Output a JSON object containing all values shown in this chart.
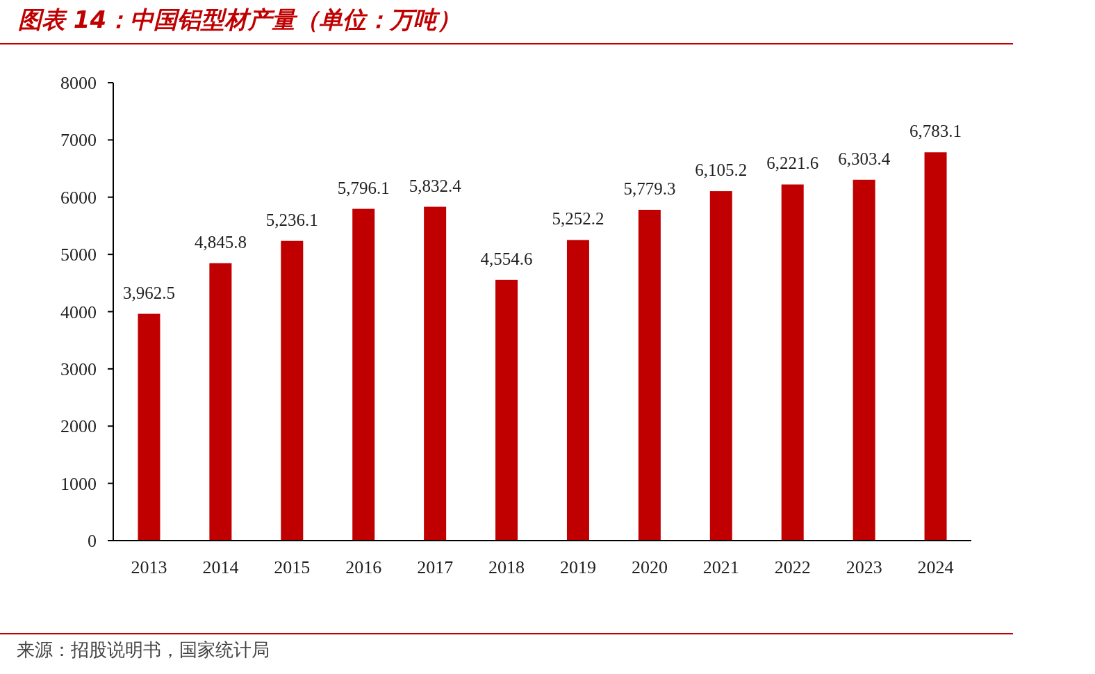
{
  "chart_data": {
    "type": "bar",
    "title": "图表 14：中国铝型材产量（单位：万吨）",
    "categories": [
      "2013",
      "2014",
      "2015",
      "2016",
      "2017",
      "2018",
      "2019",
      "2020",
      "2021",
      "2022",
      "2023",
      "2024"
    ],
    "values": [
      3962.5,
      4845.8,
      5236.1,
      5796.1,
      5832.4,
      4554.6,
      5252.2,
      5779.3,
      6105.2,
      6221.6,
      6303.4,
      6783.1
    ],
    "value_labels": [
      "3,962.5",
      "4,845.8",
      "5,236.1",
      "5,796.1",
      "5,832.4",
      "4,554.6",
      "5,252.2",
      "5,779.3",
      "6,105.2",
      "6,221.6",
      "6,303.4",
      "6,783.1"
    ],
    "color": "#c00000",
    "ylim": [
      0,
      8000
    ],
    "yticks": [
      0,
      1000,
      2000,
      3000,
      4000,
      5000,
      6000,
      7000,
      8000
    ],
    "grid": false,
    "annotations": [
      "来源：招股说明书，国家统计局"
    ]
  }
}
